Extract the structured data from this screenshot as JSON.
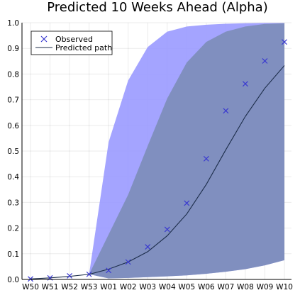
{
  "chart_data": {
    "type": "line",
    "title": "Predicted 10 Weeks Ahead (Alpha)",
    "xlabel": "",
    "ylabel": "",
    "categories": [
      "W50",
      "W51",
      "W52",
      "W53",
      "W01",
      "W02",
      "W03",
      "W04",
      "W05",
      "W06",
      "W07",
      "W08",
      "W09",
      "W10"
    ],
    "ylim": [
      0,
      1
    ],
    "yticks": [
      "0.0",
      "0.1",
      "0.2",
      "0.3",
      "0.4",
      "0.5",
      "0.6",
      "0.7",
      "0.8",
      "0.9",
      "1.0"
    ],
    "grid": true,
    "legend_position": "top-left",
    "colors": {
      "outer_band": "#9a9aff",
      "inner_band": "#7a8cb4",
      "observed": "#3a3ad0",
      "predicted": "#1c2d4a"
    },
    "series": [
      {
        "name": "Observed",
        "kind": "scatter",
        "values": [
          0.002,
          0.006,
          0.014,
          0.02,
          0.035,
          0.068,
          0.127,
          0.195,
          0.297,
          0.47,
          0.657,
          0.762,
          0.851,
          0.925
        ]
      },
      {
        "name": "Predicted path",
        "kind": "line",
        "values": [
          0.002,
          0.006,
          0.012,
          0.02,
          0.04,
          0.068,
          0.108,
          0.17,
          0.255,
          0.37,
          0.505,
          0.635,
          0.745,
          0.833
        ]
      }
    ],
    "bands": [
      {
        "kind": "outer",
        "lower": [
          0.002,
          0.006,
          0.012,
          0.02,
          0.004,
          0.006,
          0.009,
          0.012,
          0.016,
          0.022,
          0.03,
          0.04,
          0.055,
          0.075
        ],
        "upper": [
          0.002,
          0.006,
          0.012,
          0.02,
          0.535,
          0.775,
          0.905,
          0.965,
          0.985,
          0.992,
          0.996,
          0.998,
          0.999,
          0.999
        ]
      },
      {
        "kind": "inner",
        "lower": [
          0.002,
          0.006,
          0.012,
          0.02,
          0.004,
          0.006,
          0.009,
          0.012,
          0.016,
          0.022,
          0.03,
          0.04,
          0.055,
          0.075
        ],
        "upper": [
          0.002,
          0.006,
          0.012,
          0.02,
          0.175,
          0.33,
          0.52,
          0.705,
          0.845,
          0.925,
          0.965,
          0.985,
          0.995,
          0.998
        ]
      }
    ]
  }
}
